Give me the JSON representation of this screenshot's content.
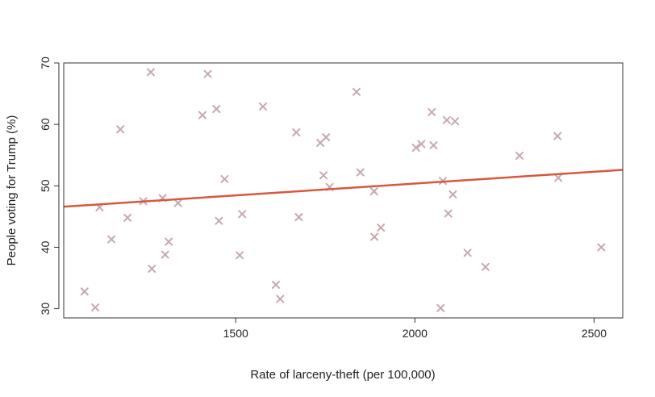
{
  "chart_data": {
    "type": "scatter",
    "title": "",
    "xlabel": "Rate of larceny-theft (per 100,000)",
    "ylabel": "People voting for Trump (%)",
    "xlim": [
      1020,
      2580
    ],
    "ylim": [
      28.5,
      70
    ],
    "x_ticks": [
      1500,
      2000,
      2500
    ],
    "y_ticks": [
      30,
      40,
      50,
      60,
      70
    ],
    "grid": false,
    "legend": "none",
    "point_marker": "x",
    "point_color": "#c7a9ad",
    "line_color": "#d9573f",
    "regression_line": {
      "x": [
        1020,
        2580
      ],
      "y": [
        46.6,
        52.6
      ]
    },
    "points": [
      {
        "x": 1078,
        "y": 32.8
      },
      {
        "x": 1108,
        "y": 30.2
      },
      {
        "x": 1120,
        "y": 46.5
      },
      {
        "x": 1153,
        "y": 41.3
      },
      {
        "x": 1178,
        "y": 59.2
      },
      {
        "x": 1198,
        "y": 44.8
      },
      {
        "x": 1242,
        "y": 47.5
      },
      {
        "x": 1263,
        "y": 68.5
      },
      {
        "x": 1266,
        "y": 36.5
      },
      {
        "x": 1296,
        "y": 48.0
      },
      {
        "x": 1303,
        "y": 38.8
      },
      {
        "x": 1313,
        "y": 40.9
      },
      {
        "x": 1339,
        "y": 47.2
      },
      {
        "x": 1407,
        "y": 61.5
      },
      {
        "x": 1422,
        "y": 68.2
      },
      {
        "x": 1446,
        "y": 62.5
      },
      {
        "x": 1453,
        "y": 44.3
      },
      {
        "x": 1469,
        "y": 51.1
      },
      {
        "x": 1511,
        "y": 38.7
      },
      {
        "x": 1518,
        "y": 45.4
      },
      {
        "x": 1576,
        "y": 62.9
      },
      {
        "x": 1612,
        "y": 33.9
      },
      {
        "x": 1624,
        "y": 31.6
      },
      {
        "x": 1669,
        "y": 58.7
      },
      {
        "x": 1676,
        "y": 44.9
      },
      {
        "x": 1736,
        "y": 57.0
      },
      {
        "x": 1745,
        "y": 51.7
      },
      {
        "x": 1752,
        "y": 57.9
      },
      {
        "x": 1762,
        "y": 49.8
      },
      {
        "x": 1837,
        "y": 65.3
      },
      {
        "x": 1848,
        "y": 52.2
      },
      {
        "x": 1886,
        "y": 49.1
      },
      {
        "x": 1887,
        "y": 41.7
      },
      {
        "x": 1905,
        "y": 43.2
      },
      {
        "x": 2003,
        "y": 56.2
      },
      {
        "x": 2018,
        "y": 56.8
      },
      {
        "x": 2047,
        "y": 62.0
      },
      {
        "x": 2052,
        "y": 56.6
      },
      {
        "x": 2072,
        "y": 30.1
      },
      {
        "x": 2078,
        "y": 50.8
      },
      {
        "x": 2089,
        "y": 60.7
      },
      {
        "x": 2093,
        "y": 45.5
      },
      {
        "x": 2106,
        "y": 48.6
      },
      {
        "x": 2112,
        "y": 60.5
      },
      {
        "x": 2147,
        "y": 39.1
      },
      {
        "x": 2197,
        "y": 36.8
      },
      {
        "x": 2292,
        "y": 54.9
      },
      {
        "x": 2398,
        "y": 58.1
      },
      {
        "x": 2400,
        "y": 51.3
      },
      {
        "x": 2520,
        "y": 40.0
      }
    ]
  }
}
